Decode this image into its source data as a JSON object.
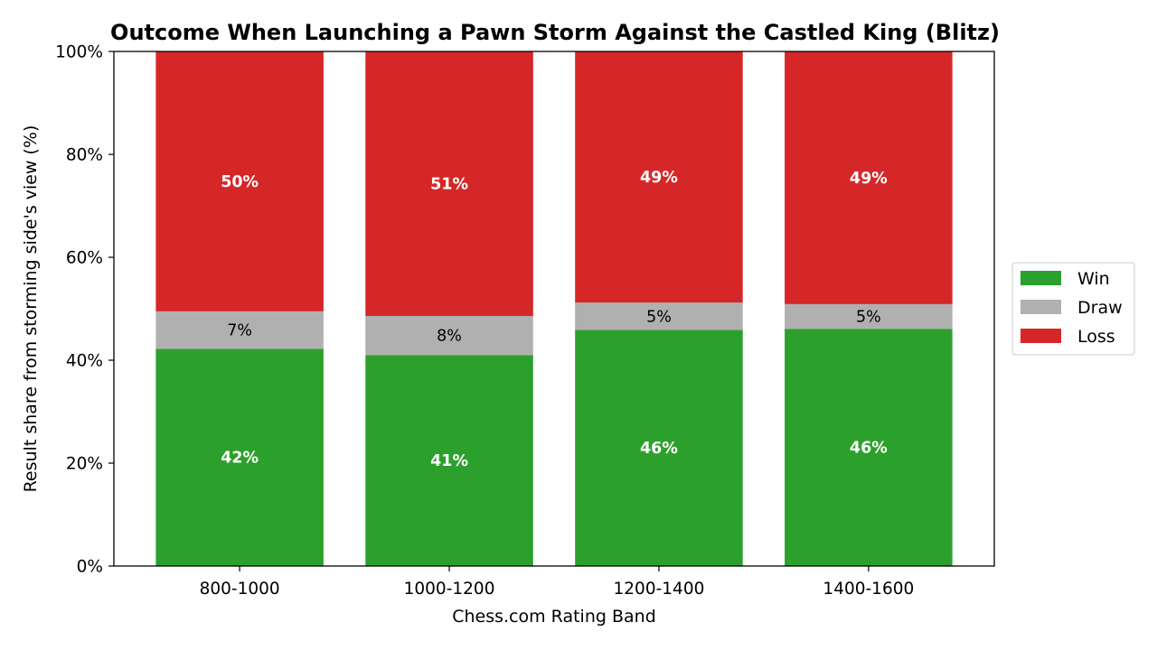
{
  "chart_data": {
    "type": "bar",
    "stacked": true,
    "title": "Outcome When Launching a Pawn Storm Against the Castled King (Blitz)",
    "xlabel": "Chess.com Rating Band",
    "ylabel": "Result share from storming side's view (%)",
    "categories": [
      "800-1000",
      "1000-1200",
      "1200-1400",
      "1400-1600"
    ],
    "ylim": [
      0,
      100
    ],
    "yticks": [
      0,
      20,
      40,
      60,
      80,
      100
    ],
    "ytick_labels": [
      "0%",
      "20%",
      "40%",
      "60%",
      "80%",
      "100%"
    ],
    "grid": false,
    "legend_position": "right",
    "series": [
      {
        "name": "Win",
        "color": "#2ca02c",
        "values": [
          42.2,
          41.0,
          45.9,
          46.1
        ],
        "labels": [
          "42%",
          "41%",
          "46%",
          "46%"
        ],
        "label_style": "bold-white"
      },
      {
        "name": "Draw",
        "color": "#b0b0b0",
        "values": [
          7.3,
          7.6,
          5.3,
          4.8
        ],
        "labels": [
          "7%",
          "8%",
          "5%",
          "5%"
        ],
        "label_style": "normal-black"
      },
      {
        "name": "Loss",
        "color": "#d62728",
        "values": [
          50.5,
          51.4,
          48.8,
          49.1
        ],
        "labels": [
          "50%",
          "51%",
          "49%",
          "49%"
        ],
        "label_style": "bold-white"
      }
    ]
  }
}
